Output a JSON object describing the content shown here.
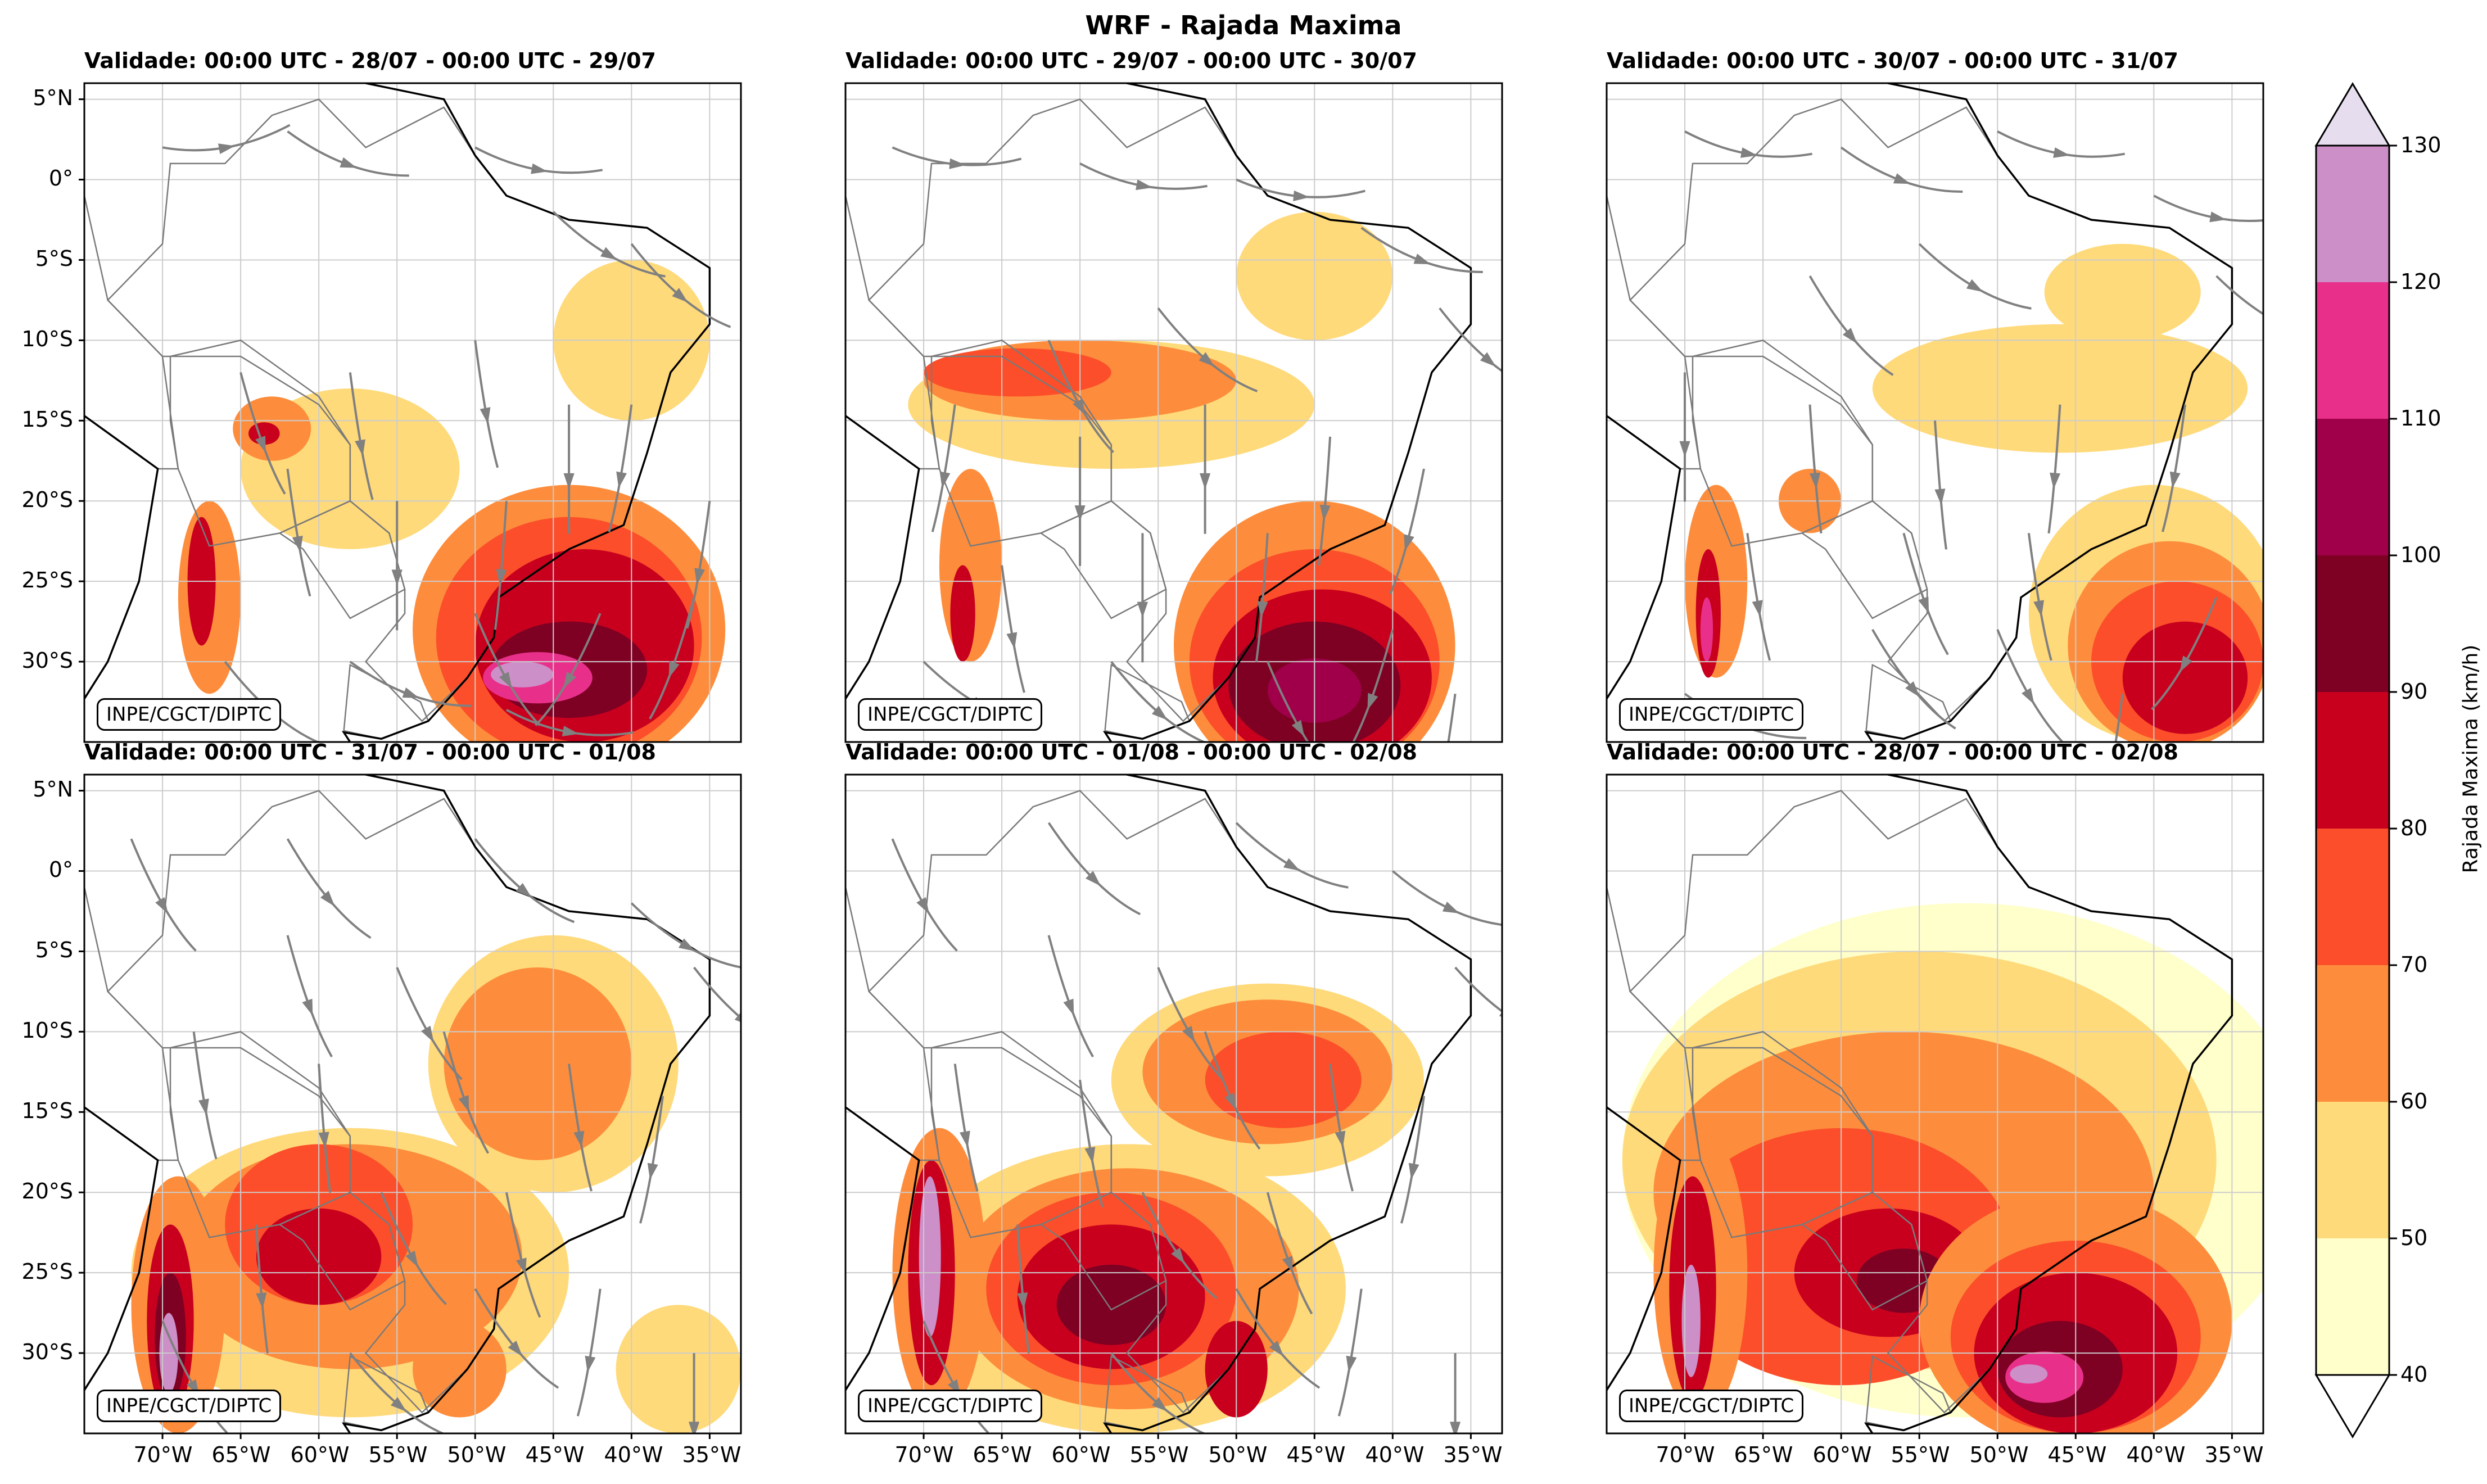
{
  "title": "WRF - Rajada Maxima",
  "panels": [
    {
      "title": "Validade: 00:00 UTC - 28/07 - 00:00 UTC - 29/07",
      "credit": "INPE/CGCT/DIPTC"
    },
    {
      "title": "Validade: 00:00 UTC - 29/07 - 00:00 UTC - 30/07",
      "credit": "INPE/CGCT/DIPTC"
    },
    {
      "title": "Validade: 00:00 UTC - 30/07 - 00:00 UTC - 31/07",
      "credit": "INPE/CGCT/DIPTC"
    },
    {
      "title": "Validade: 00:00 UTC - 31/07 - 00:00 UTC - 01/08",
      "credit": "INPE/CGCT/DIPTC"
    },
    {
      "title": "Validade: 00:00 UTC - 01/08 - 00:00 UTC - 02/08",
      "credit": "INPE/CGCT/DIPTC"
    },
    {
      "title": "Validade: 00:00 UTC - 28/07 - 00:00 UTC - 02/08",
      "credit": "INPE/CGCT/DIPTC"
    }
  ],
  "lat_labels": [
    "5°N",
    "0°",
    "5°S",
    "10°S",
    "15°S",
    "20°S",
    "25°S",
    "30°S"
  ],
  "lat_values": [
    5,
    0,
    -5,
    -10,
    -15,
    -20,
    -25,
    -30
  ],
  "lon_labels": [
    "70°W",
    "65°W",
    "60°W",
    "55°W",
    "50°W",
    "45°W",
    "40°W",
    "35°W"
  ],
  "lon_values": [
    -70,
    -65,
    -60,
    -55,
    -50,
    -45,
    -40,
    -35
  ],
  "extent": {
    "lon_min": -75,
    "lon_max": -33,
    "lat_min": -35,
    "lat_max": 6
  },
  "colorbar": {
    "title": "Rajada Maxima (km/h)",
    "levels": [
      40,
      50,
      60,
      70,
      80,
      90,
      100,
      110,
      120,
      130
    ],
    "colors": [
      "#ffffcc",
      "#ffda7a",
      "#fd8d3c",
      "#fc4e2a",
      "#c8001e",
      "#7e0023",
      "#a0004a",
      "#e8308a",
      "#cc8fc8",
      "#e6ddee"
    ]
  },
  "legend_colors": {
    "streamline": "#808080",
    "coast": "#000000",
    "border": "#7a7a7a",
    "grid": "#cccccc"
  }
}
